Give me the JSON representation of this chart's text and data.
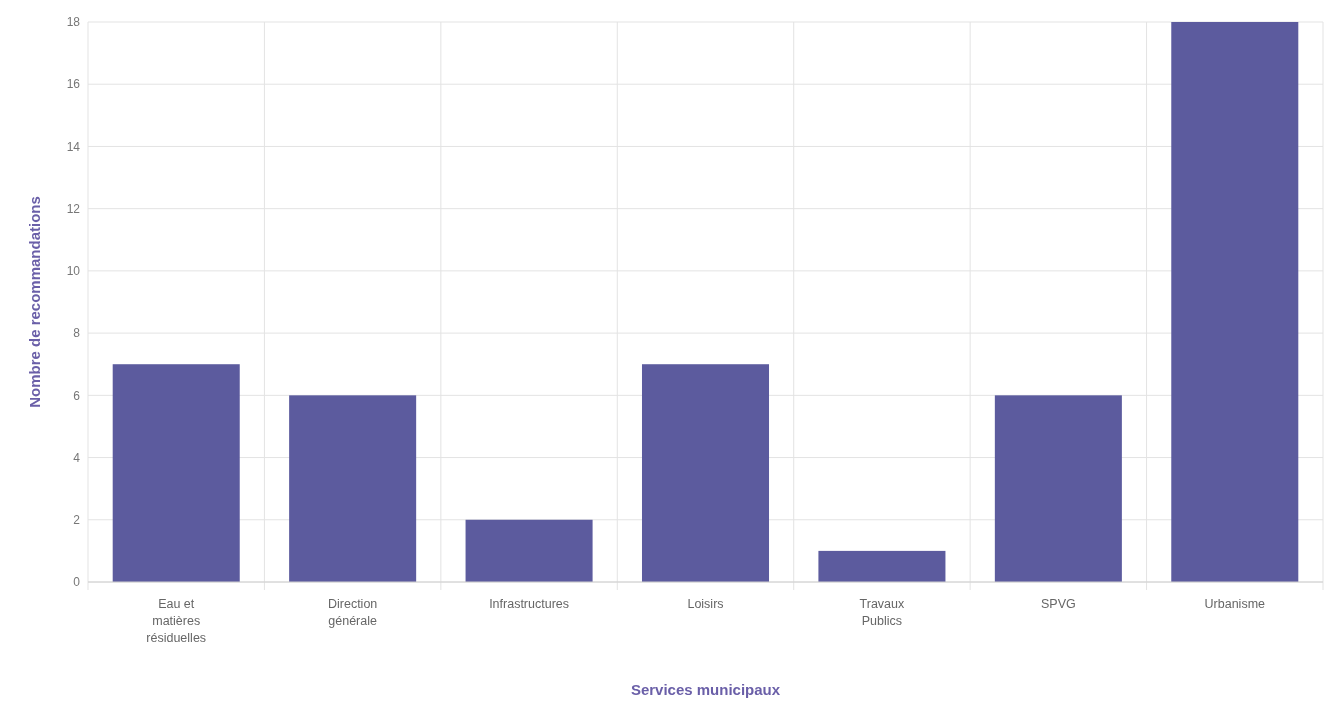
{
  "chart_data": {
    "type": "bar",
    "xlabel": "Services municipaux",
    "ylabel": "Nombre de recommandations",
    "categories": [
      "Eau et matières résiduelles",
      "Direction générale",
      "Infrastructures",
      "Loisirs",
      "Travaux Publics",
      "SPVG",
      "Urbanisme"
    ],
    "values": [
      7,
      6,
      2,
      7,
      1,
      6,
      18
    ],
    "color": "#5c5b9e",
    "ylim": [
      0,
      18
    ],
    "yticks": [
      0,
      2,
      4,
      6,
      8,
      10,
      12,
      14,
      16,
      18
    ],
    "grid": true
  }
}
